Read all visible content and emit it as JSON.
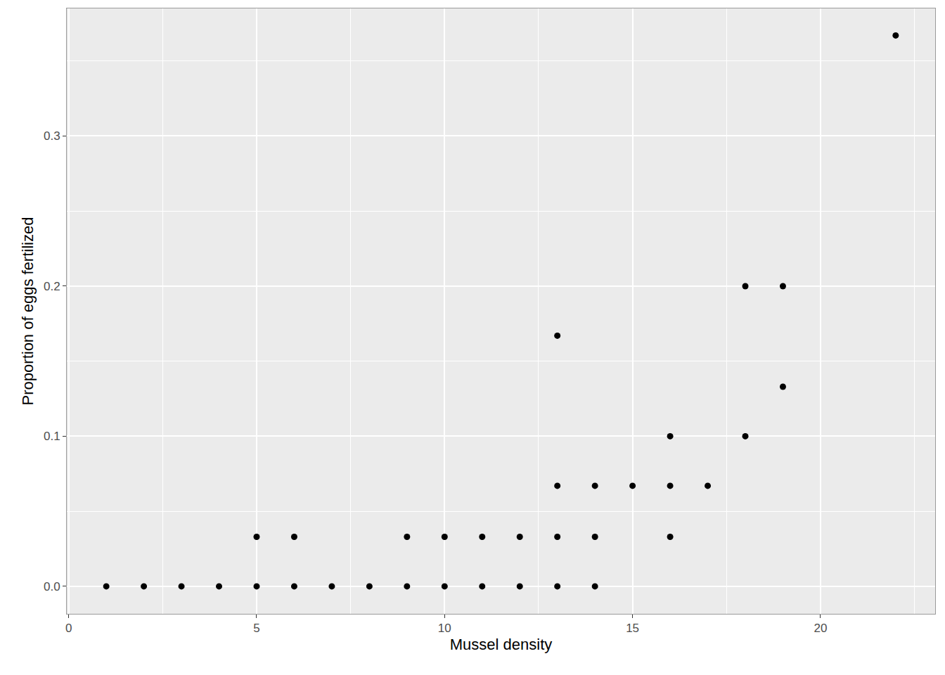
{
  "chart_data": {
    "type": "scatter",
    "x_label": "Mussel density",
    "y_label": "Proportion of eggs fertilized",
    "x": [
      1,
      2,
      3,
      4,
      5,
      5,
      6,
      6,
      7,
      8,
      9,
      9,
      10,
      10,
      11,
      11,
      12,
      12,
      13,
      13,
      13,
      13,
      14,
      14,
      14,
      15,
      16,
      16,
      16,
      17,
      18,
      18,
      19,
      19,
      22
    ],
    "values": [
      0,
      0,
      0,
      0,
      0,
      0.033,
      0,
      0.033,
      0,
      0,
      0,
      0.033,
      0,
      0.033,
      0,
      0.033,
      0,
      0.033,
      0,
      0.033,
      0.067,
      0.167,
      0,
      0.033,
      0.067,
      0.067,
      0.033,
      0.067,
      0.1,
      0.067,
      0.1,
      0.2,
      0.133,
      0.2,
      0.367
    ],
    "color": "#000000",
    "marker": "circle",
    "xlim": [
      -0.05,
      23.05
    ],
    "ylim": [
      -0.0183,
      0.385
    ],
    "xticks": [
      0,
      5,
      10,
      15,
      20
    ],
    "yticks": [
      {
        "value": 0,
        "label": "0.0"
      },
      0.1,
      0.2,
      0.3
    ],
    "grid": true
  }
}
